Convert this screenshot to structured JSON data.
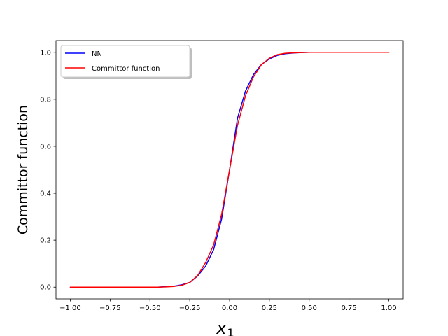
{
  "chart_data": {
    "type": "line",
    "title": "",
    "xlabel_main": "x",
    "xlabel_sub": "1",
    "ylabel": "Committor function",
    "xlim": [
      -1.09,
      1.09
    ],
    "ylim": [
      -0.05,
      1.05
    ],
    "xticks": [
      -1.0,
      -0.75,
      -0.5,
      -0.25,
      0.0,
      0.25,
      0.5,
      0.75,
      1.0
    ],
    "xtick_labels": [
      "−1.00",
      "−0.75",
      "−0.50",
      "−0.25",
      "0.00",
      "0.25",
      "0.50",
      "0.75",
      "1.00"
    ],
    "yticks": [
      0.0,
      0.2,
      0.4,
      0.6,
      0.8,
      1.0
    ],
    "ytick_labels": [
      "0.0",
      "0.2",
      "0.4",
      "0.6",
      "0.8",
      "1.0"
    ],
    "grid": false,
    "legend_placement": "upper-left",
    "x": [
      -1.0,
      -0.95,
      -0.9,
      -0.85,
      -0.8,
      -0.75,
      -0.7,
      -0.65,
      -0.6,
      -0.55,
      -0.5,
      -0.45,
      -0.4,
      -0.35,
      -0.3,
      -0.25,
      -0.2,
      -0.15,
      -0.1,
      -0.05,
      0.0,
      0.05,
      0.1,
      0.15,
      0.2,
      0.25,
      0.3,
      0.35,
      0.4,
      0.45,
      0.5,
      0.55,
      0.6,
      0.65,
      0.7,
      0.75,
      0.8,
      0.85,
      0.9,
      0.95,
      1.0
    ],
    "series": [
      {
        "name": "NN",
        "color": "#0000ff",
        "values": [
          0.0,
          0.0,
          0.0,
          0.0,
          0.0,
          0.0,
          0.0,
          0.0,
          0.0,
          0.0,
          0.0,
          0.0,
          0.002,
          0.004,
          0.01,
          0.02,
          0.048,
          0.09,
          0.16,
          0.29,
          0.5,
          0.72,
          0.835,
          0.905,
          0.948,
          0.972,
          0.987,
          0.994,
          0.997,
          0.999,
          1.0,
          1.0,
          1.0,
          1.0,
          1.0,
          1.0,
          1.0,
          1.0,
          1.0,
          1.0,
          1.0
        ]
      },
      {
        "name": "Committor function",
        "color": "#ff0000",
        "values": [
          0.0,
          0.0,
          0.0,
          0.0,
          0.0,
          0.0,
          0.0,
          0.0,
          0.0,
          0.0,
          0.0,
          0.0,
          0.001,
          0.003,
          0.008,
          0.02,
          0.05,
          0.105,
          0.18,
          0.31,
          0.5,
          0.69,
          0.815,
          0.895,
          0.947,
          0.975,
          0.99,
          0.996,
          0.998,
          0.999,
          1.0,
          1.0,
          1.0,
          1.0,
          1.0,
          1.0,
          1.0,
          1.0,
          1.0,
          1.0,
          1.0
        ]
      }
    ]
  }
}
